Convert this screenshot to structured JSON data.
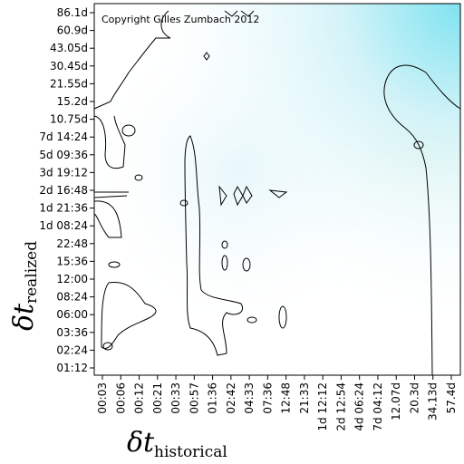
{
  "chart_data": {
    "type": "contour",
    "annotation": "Copyright Gilles Zumbach 2012",
    "x_label": "δt",
    "x_label_subscript": "historical",
    "y_label": "δt",
    "y_label_subscript": "realized",
    "categories": [
      "00:03",
      "00:06",
      "00:12",
      "00:21",
      "00:33",
      "00:57",
      "01:36",
      "02:42",
      "04:33",
      "07:36",
      "12:48",
      "21:33",
      "1d 12:12",
      "2d 12:54",
      "4d 06:24",
      "7d 04:12",
      "12.07d",
      "20.3d",
      "34.13d",
      "57.4d"
    ],
    "y_categories": [
      "01:12",
      "02:24",
      "03:36",
      "06:00",
      "08:24",
      "12:00",
      "15:36",
      "22:48",
      "1d 08:24",
      "1d 21:36",
      "2d 16:48",
      "3d 19:12",
      "5d 09:36",
      "7d 14:24",
      "10.75d",
      "15.2d",
      "21.55d",
      "30.45d",
      "43.05d",
      "60.9d",
      "86.1d"
    ]
  }
}
